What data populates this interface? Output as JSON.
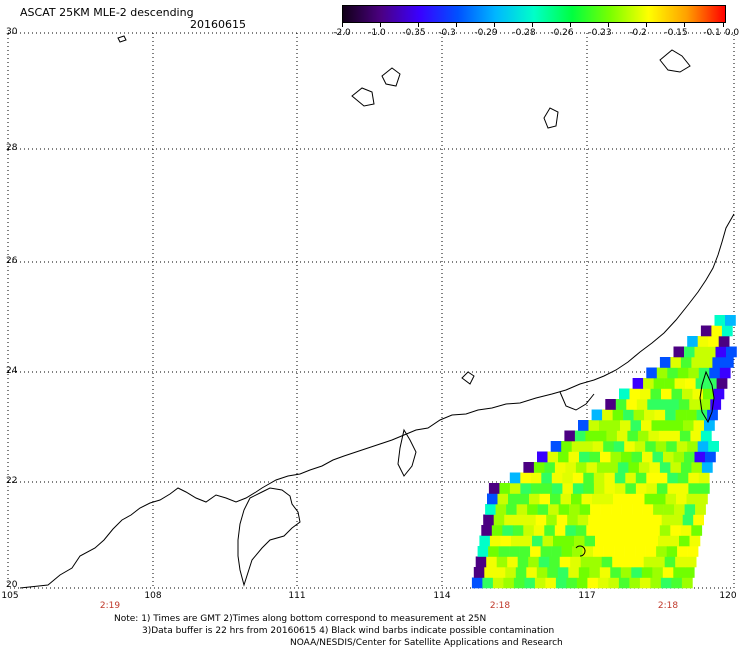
{
  "header": {
    "title": "ASCAT 25KM MLE-2 descending",
    "date": "20160615"
  },
  "colorbar": {
    "labels": [
      "-2.0",
      "-1.0",
      "-0.35",
      "-0.3",
      "-0.29",
      "-0.28",
      "-0.26",
      "-0.23",
      "-0.2",
      "-0.15",
      "-0.1",
      "0.0"
    ],
    "colors": [
      "#120018",
      "#4b0082",
      "#3a00ff",
      "#0050ff",
      "#00b7ff",
      "#00ffc8",
      "#00ff40",
      "#7aff00",
      "#ffff00",
      "#ffa000",
      "#ff0000"
    ]
  },
  "axes": {
    "lat_labels": [
      "30",
      "28",
      "26",
      "24",
      "22",
      "20"
    ],
    "lon_labels": [
      "105",
      "108",
      "111",
      "114",
      "117",
      "120"
    ],
    "lat_range": [
      20,
      30
    ],
    "lon_range": [
      105,
      120
    ],
    "grid": "dotted"
  },
  "pass_times": [
    {
      "label": "2:19",
      "lon": 107.2
    },
    {
      "label": "2:18",
      "lon": 115.3
    },
    {
      "label": "2:18",
      "lon": 118.8
    }
  ],
  "notes": {
    "line1": "Note: 1) Times are GMT 2)Times along bottom correspond to measurement at 25N",
    "line2": "3)Data buffer is 22 hrs from 20160615 4) Black wind barbs indicate possible contamination",
    "line3": "NOAA/NESDIS/Center for Satellite Applications and Research"
  }
}
